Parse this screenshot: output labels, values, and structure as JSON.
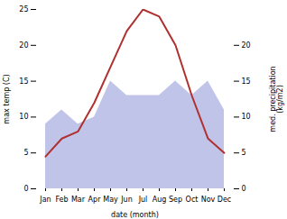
{
  "chart_data": {
    "type": "line",
    "categories": [
      "Jan",
      "Feb",
      "Mar",
      "Apr",
      "May",
      "Jun",
      "Jul",
      "Aug",
      "Sep",
      "Oct",
      "Nov",
      "Dec"
    ],
    "xlabel": "date (month)",
    "ylabel": "max temp (C)",
    "y2label": "med. precipitation\n(kg/m2)",
    "series": [
      {
        "type": "line",
        "color": "#b03030",
        "values": [
          4.5,
          7.0,
          8.0,
          12.0,
          17.0,
          22.0,
          25.0,
          24.0,
          20.0,
          13.0,
          7.0,
          5.0
        ]
      },
      {
        "type": "area",
        "axis": "y2",
        "color": "#c0c4e8",
        "values": [
          9,
          11,
          9,
          10,
          15,
          13,
          13,
          13,
          15,
          13,
          15,
          11
        ]
      }
    ],
    "ylim": [
      0,
      25
    ],
    "yticks": [
      0,
      5,
      10,
      15,
      20,
      25
    ],
    "y2lim": [
      0,
      25
    ],
    "y2ticks": [
      0,
      5,
      10,
      15,
      20
    ],
    "grid": false
  }
}
